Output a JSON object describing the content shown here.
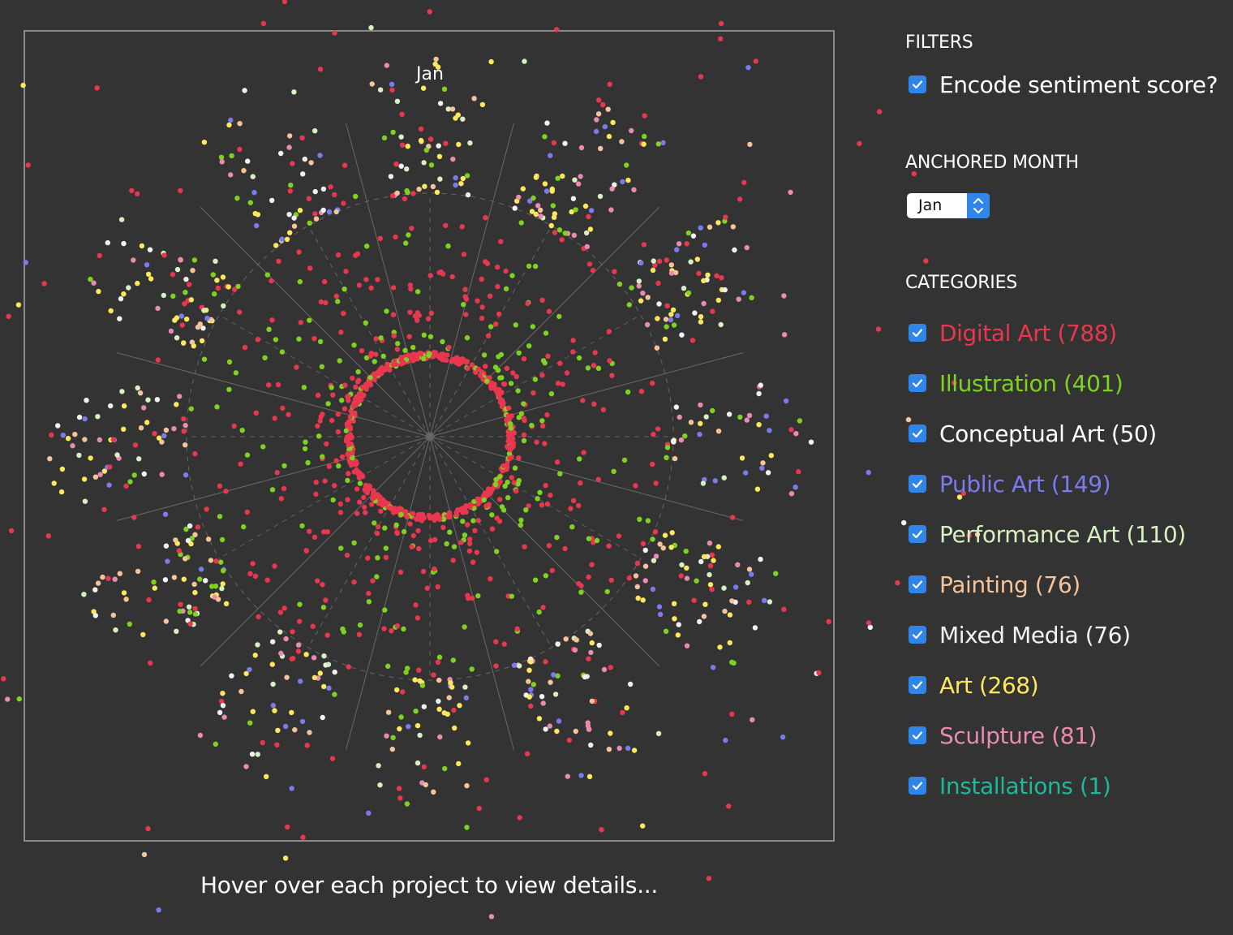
{
  "chart_data": {
    "type": "scatter",
    "projection": "radial",
    "anchor_label": "Jan",
    "encode_sentiment": true
  },
  "hint_text": "Hover over each project to view details...",
  "sidebar": {
    "filters_title": "FILTERS",
    "encode_sentiment_label": "Encode sentiment score?",
    "anchored_month_title": "ANCHORED MONTH",
    "anchored_month_value": "Jan",
    "categories_title": "CATEGORIES",
    "categories": [
      {
        "label": "Digital Art (788)",
        "color": "#e8374f",
        "count": 788
      },
      {
        "label": "Illustration (401)",
        "color": "#7ed321",
        "count": 401
      },
      {
        "label": "Conceptual Art (50)",
        "color": "#ffffff",
        "count": 50
      },
      {
        "label": "Public Art (149)",
        "color": "#7b7bf0",
        "count": 149
      },
      {
        "label": "Performance Art (110)",
        "color": "#d6f0c2",
        "count": 110
      },
      {
        "label": "Painting (76)",
        "color": "#f5c49a",
        "count": 76
      },
      {
        "label": "Mixed Media (76)",
        "color": "#f2f2f2",
        "count": 76
      },
      {
        "label": "Art (268)",
        "color": "#ffe85c",
        "count": 268
      },
      {
        "label": "Sculpture (81)",
        "color": "#e98bb3",
        "count": 81
      },
      {
        "label": "Installations (1)",
        "color": "#1fb89a",
        "count": 1
      }
    ]
  },
  "colors": {
    "background": "#333333",
    "frame": "#8a8a8a",
    "checkbox": "#2f86e8"
  }
}
